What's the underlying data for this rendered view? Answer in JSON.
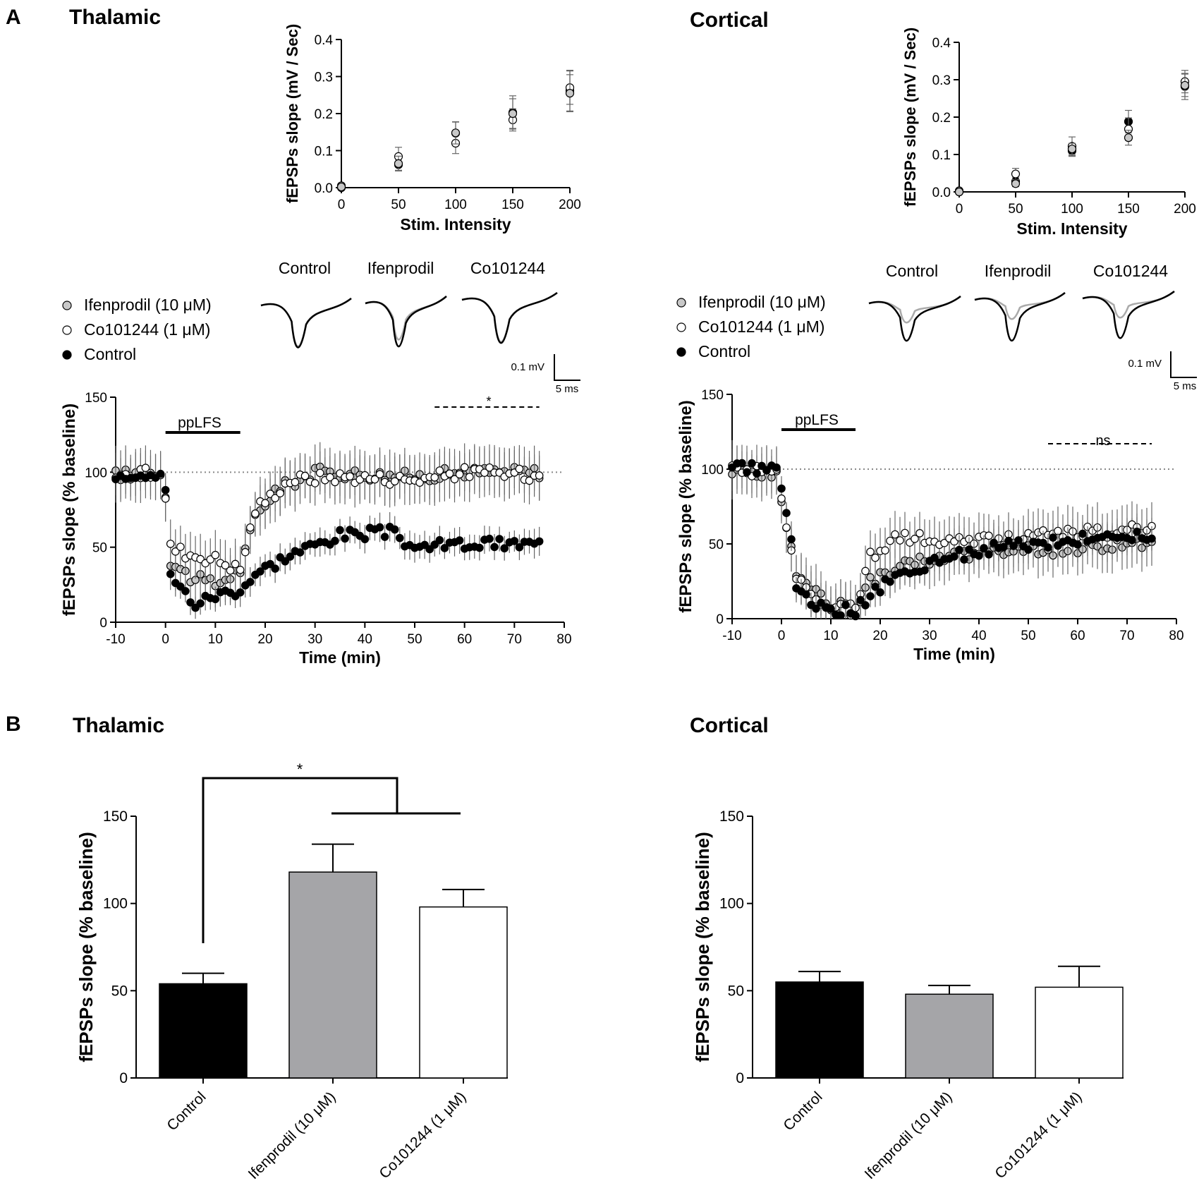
{
  "panel_labels": {
    "a": "A",
    "b": "B"
  },
  "colors": {
    "control": "#000000",
    "ifenprodil": "#c8c8c8",
    "ifenprodil_bar": "#a5a5a8",
    "co101244": "#ffffff",
    "trace_grey": "#aaaaaa",
    "dotted": "#888888"
  },
  "chart_data": [
    {
      "id": "A_thal_io",
      "type": "scatter",
      "title": "Thalamic",
      "xlabel": "Stim. Intensity",
      "ylabel": "fEPSPs slope (mV / Sec)",
      "xlim": [
        0,
        200
      ],
      "ylim": [
        0,
        0.4
      ],
      "xticks": [
        "0",
        "50",
        "100",
        "150",
        "200"
      ],
      "yticks": [
        "0.0",
        "0.1",
        "0.2",
        "0.3",
        "0.4"
      ],
      "series": [
        {
          "name": "Control",
          "x": [
            0,
            50,
            100,
            150,
            200
          ],
          "y": [
            0.0,
            0.062,
            0.147,
            0.203,
            0.262
          ],
          "err": [
            0.003,
            0.015,
            0.03,
            0.045,
            0.055
          ]
        },
        {
          "name": "Co101244 (1 μM)",
          "x": [
            0,
            50,
            100,
            150,
            200
          ],
          "y": [
            0.005,
            0.084,
            0.12,
            0.183,
            0.27
          ],
          "err": [
            0.003,
            0.025,
            0.028,
            0.03,
            0.045
          ]
        },
        {
          "name": "Ifenprodil (10 μM)",
          "x": [
            0,
            50,
            100,
            150,
            200
          ],
          "y": [
            0.002,
            0.065,
            0.148,
            0.2,
            0.255
          ],
          "err": [
            0.003,
            0.02,
            0.03,
            0.04,
            0.05
          ]
        }
      ]
    },
    {
      "id": "A_cort_io",
      "type": "scatter",
      "title": "Cortical",
      "xlabel": "Stim. Intensity",
      "ylabel": "fEPSPs slope (mV / Sec)",
      "xlim": [
        0,
        200
      ],
      "ylim": [
        0,
        0.4
      ],
      "xticks": [
        "0",
        "50",
        "100",
        "150",
        "200"
      ],
      "yticks": [
        "0.0",
        "0.1",
        "0.2",
        "0.3",
        "0.4"
      ],
      "series": [
        {
          "name": "Control",
          "x": [
            0,
            50,
            100,
            150,
            200
          ],
          "y": [
            0.0,
            0.028,
            0.11,
            0.188,
            0.282
          ],
          "err": [
            0.003,
            0.01,
            0.015,
            0.03,
            0.035
          ]
        },
        {
          "name": "Co101244 (1 μM)",
          "x": [
            0,
            50,
            100,
            150,
            200
          ],
          "y": [
            0.003,
            0.048,
            0.122,
            0.168,
            0.295
          ],
          "err": [
            0.003,
            0.015,
            0.025,
            0.03,
            0.03
          ]
        },
        {
          "name": "Ifenprodil (10 μM)",
          "x": [
            0,
            50,
            100,
            150,
            200
          ],
          "y": [
            0.0,
            0.022,
            0.115,
            0.145,
            0.285
          ],
          "err": [
            0.003,
            0.008,
            0.015,
            0.02,
            0.03
          ]
        }
      ]
    },
    {
      "id": "A_thal_ltd",
      "type": "scatter",
      "title": "Thalamic",
      "xlabel": "Time (min)",
      "ylabel": "fEPSPs slope (% baseline)",
      "xlim": [
        -10,
        80
      ],
      "ylim": [
        0,
        150
      ],
      "xticks": [
        "-10",
        "0",
        "10",
        "20",
        "30",
        "40",
        "50",
        "60",
        "70",
        "80"
      ],
      "yticks": [
        "0",
        "50",
        "100",
        "150"
      ],
      "baseline": 100,
      "stim_label": "ppLFS",
      "stim_range": [
        0,
        15
      ],
      "sig_label": "*",
      "sig_range": [
        54,
        75
      ],
      "traces_labels": [
        "Control",
        "Ifenprodil",
        "Co101244"
      ],
      "scale_labels": {
        "v": "0.1 mV",
        "t": "5 ms"
      },
      "legend": [
        "Ifenprodil (10 μM)",
        "Co101244 (1 μM)",
        "Control"
      ],
      "profiles": {
        "control": [
          [
            -10,
            99
          ],
          [
            -1,
            100
          ],
          [
            0,
            90
          ],
          [
            1,
            30
          ],
          [
            6,
            12
          ],
          [
            10,
            18
          ],
          [
            15,
            22
          ],
          [
            18,
            32
          ],
          [
            25,
            45
          ],
          [
            35,
            58
          ],
          [
            45,
            60
          ],
          [
            50,
            50
          ],
          [
            60,
            52
          ],
          [
            75,
            52
          ]
        ],
        "ifenprodil": [
          [
            -10,
            98
          ],
          [
            -1,
            100
          ],
          [
            0,
            87
          ],
          [
            1,
            40
          ],
          [
            5,
            30
          ],
          [
            10,
            25
          ],
          [
            15,
            35
          ],
          [
            18,
            70
          ],
          [
            22,
            88
          ],
          [
            30,
            100
          ],
          [
            50,
            97
          ],
          [
            60,
            100
          ],
          [
            75,
            100
          ]
        ],
        "co101244": [
          [
            -10,
            97
          ],
          [
            -1,
            100
          ],
          [
            0,
            82
          ],
          [
            1,
            50
          ],
          [
            5,
            45
          ],
          [
            10,
            42
          ],
          [
            15,
            35
          ],
          [
            18,
            75
          ],
          [
            25,
            95
          ],
          [
            35,
            97
          ],
          [
            50,
            95
          ],
          [
            60,
            100
          ],
          [
            75,
            98
          ]
        ]
      }
    },
    {
      "id": "A_cort_ltd",
      "type": "scatter",
      "title": "Cortical",
      "xlabel": "Time (min)",
      "ylabel": "fEPSPs slope (% baseline)",
      "xlim": [
        -10,
        80
      ],
      "ylim": [
        0,
        150
      ],
      "xticks": [
        "-10",
        "0",
        "10",
        "20",
        "30",
        "40",
        "50",
        "60",
        "70",
        "80"
      ],
      "yticks": [
        "0",
        "50",
        "100",
        "150"
      ],
      "baseline": 100,
      "stim_label": "ppLFS",
      "stim_range": [
        0,
        15
      ],
      "sig_label": "ns",
      "sig_range": [
        54,
        75
      ],
      "traces_labels": [
        "Control",
        "Ifenprodil",
        "Co101244"
      ],
      "scale_labels": {
        "v": "0.1 mV",
        "t": "5 ms"
      },
      "legend": [
        "Ifenprodil (10 μM)",
        "Co101244 (1 μM)",
        "Control"
      ],
      "profiles": {
        "control": [
          [
            -10,
            101
          ],
          [
            -1,
            99
          ],
          [
            0,
            85
          ],
          [
            2,
            55
          ],
          [
            3,
            22
          ],
          [
            6,
            12
          ],
          [
            10,
            4
          ],
          [
            15,
            6
          ],
          [
            18,
            15
          ],
          [
            22,
            25
          ],
          [
            28,
            35
          ],
          [
            35,
            42
          ],
          [
            45,
            48
          ],
          [
            55,
            52
          ],
          [
            65,
            54
          ],
          [
            75,
            57
          ]
        ],
        "ifenprodil": [
          [
            -10,
            98
          ],
          [
            -1,
            98
          ],
          [
            0,
            78
          ],
          [
            2,
            50
          ],
          [
            3,
            30
          ],
          [
            6,
            20
          ],
          [
            10,
            10
          ],
          [
            15,
            5
          ],
          [
            18,
            25
          ],
          [
            22,
            32
          ],
          [
            28,
            38
          ],
          [
            35,
            43
          ],
          [
            45,
            45
          ],
          [
            55,
            46
          ],
          [
            65,
            48
          ],
          [
            75,
            52
          ]
        ],
        "co101244": [
          [
            -10,
            99
          ],
          [
            -1,
            99
          ],
          [
            0,
            80
          ],
          [
            2,
            45
          ],
          [
            3,
            27
          ],
          [
            6,
            16
          ],
          [
            10,
            8
          ],
          [
            15,
            7
          ],
          [
            18,
            42
          ],
          [
            22,
            52
          ],
          [
            28,
            55
          ],
          [
            35,
            52
          ],
          [
            45,
            52
          ],
          [
            55,
            57
          ],
          [
            65,
            58
          ],
          [
            75,
            60
          ]
        ]
      }
    },
    {
      "id": "B_thal",
      "type": "bar",
      "title": "Thalamic",
      "categories": [
        "Control",
        "Ifenprodil (10 μM)",
        "Co101244 (1 μM)"
      ],
      "values": [
        54,
        118,
        98
      ],
      "errors": [
        6,
        16,
        10
      ],
      "xlabel": "",
      "ylabel": "fEPSPs slope (% baseline)",
      "ylim": [
        0,
        150
      ],
      "yticks": [
        "0",
        "50",
        "100",
        "150"
      ],
      "sig_label": "*"
    },
    {
      "id": "B_cort",
      "type": "bar",
      "title": "Cortical",
      "categories": [
        "Control",
        "Ifenprodil (10 μM)",
        "Co101244 (1 μM)"
      ],
      "values": [
        55,
        48,
        52
      ],
      "errors": [
        6,
        5,
        12
      ],
      "xlabel": "",
      "ylabel": "fEPSPs slope (% baseline)",
      "ylim": [
        0,
        150
      ],
      "yticks": [
        "0",
        "50",
        "100",
        "150"
      ]
    }
  ]
}
